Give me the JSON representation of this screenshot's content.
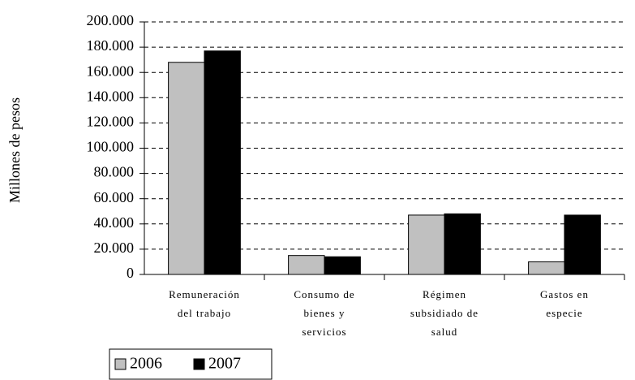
{
  "chart_data": {
    "type": "bar",
    "y_axis_label": "Millones de pesos",
    "categories": [
      [
        "Remuneración",
        "del trabajo"
      ],
      [
        "Consumo de",
        "bienes y",
        "servicios"
      ],
      [
        "Régimen",
        "subsidiado de",
        "salud"
      ],
      [
        "Gastos en",
        "especie"
      ]
    ],
    "series": [
      {
        "name": "2006",
        "color": "#c0c0c0",
        "values": [
          168000,
          15000,
          47000,
          10000
        ]
      },
      {
        "name": "2007",
        "color": "#000000",
        "values": [
          177000,
          14000,
          48000,
          47000
        ]
      }
    ],
    "ylim": [
      0,
      200000
    ],
    "yticks": [
      0,
      {
        "value": 20000,
        "label": "20.000"
      },
      {
        "value": 40000,
        "label": "40.000"
      },
      {
        "value": 60000,
        "label": "60.000"
      },
      {
        "value": 80000,
        "label": "80.000"
      },
      {
        "value": 100000,
        "label": "100.000"
      },
      {
        "value": 120000,
        "label": "120.000"
      },
      {
        "value": 140000,
        "label": "140.000"
      },
      {
        "value": 160000,
        "label": "160.000"
      },
      {
        "value": 180000,
        "label": "180.000"
      },
      {
        "value": 200000,
        "label": "200.000"
      }
    ],
    "grid": true
  }
}
